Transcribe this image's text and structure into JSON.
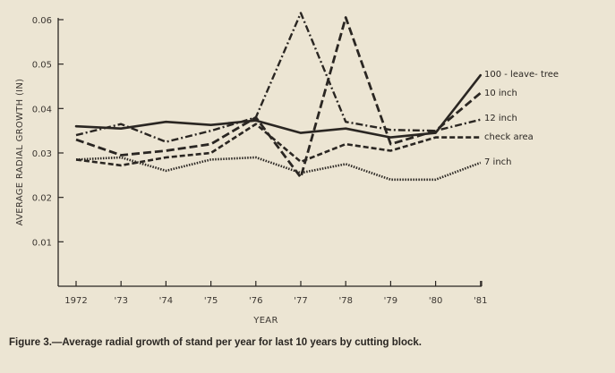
{
  "caption": "Figure 3.—Average radial growth of stand per year for last 10 years by cutting block.",
  "chart_data": {
    "type": "line",
    "categories": [
      "1972",
      "'73",
      "'74",
      "'75",
      "'76",
      "'77",
      "'78",
      "'79",
      "'80",
      "'81"
    ],
    "xlabel": "YEAR",
    "ylabel": "AVERAGE RADIAL GROWTH (IN)",
    "ylim": [
      0,
      0.06
    ],
    "yticks": [
      "0.01",
      "0.02",
      "0.03",
      "0.04",
      "0.05",
      "0.06"
    ],
    "grid": false,
    "legend": "labels at right end of lines",
    "series": [
      {
        "name": "100 - leave- tree",
        "style": "solid",
        "values": [
          0.036,
          0.0355,
          0.037,
          0.0363,
          0.0373,
          0.0345,
          0.0355,
          0.0335,
          0.0345,
          0.0475
        ]
      },
      {
        "name": "10 inch",
        "style": "long-dash",
        "values": [
          0.033,
          0.0295,
          0.0305,
          0.032,
          0.038,
          0.0245,
          0.0605,
          0.032,
          0.035,
          0.0435
        ]
      },
      {
        "name": "12 inch",
        "style": "dash-dot",
        "values": [
          0.034,
          0.0365,
          0.0325,
          0.035,
          0.038,
          0.0615,
          0.037,
          0.0352,
          0.035,
          0.0375
        ]
      },
      {
        "name": "check area",
        "style": "dashed",
        "values": [
          0.0285,
          0.0272,
          0.029,
          0.03,
          0.0365,
          0.028,
          0.032,
          0.0305,
          0.0335,
          0.0335
        ]
      },
      {
        "name": "7 inch",
        "style": "dotted",
        "values": [
          0.0285,
          0.029,
          0.026,
          0.0285,
          0.029,
          0.0255,
          0.0275,
          0.024,
          0.024,
          0.0278
        ]
      }
    ]
  }
}
